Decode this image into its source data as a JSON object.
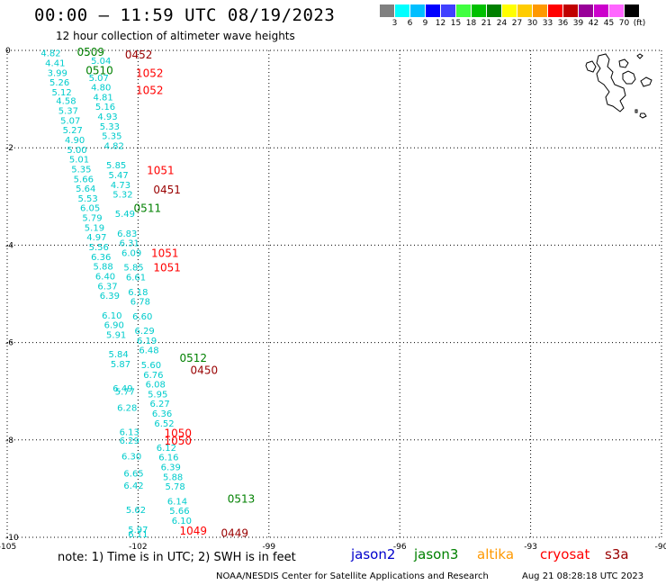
{
  "header": {
    "title": "00:00 – 11:59 UTC 08/19/2023",
    "subtitle": "12 hour collection of altimeter wave heights"
  },
  "colorbar": {
    "colors": [
      "#808080",
      "#00ffff",
      "#00bfff",
      "#0000ff",
      "#4040ff",
      "#40ff40",
      "#00c000",
      "#008000",
      "#ffff00",
      "#ffcc00",
      "#ff9900",
      "#ff0000",
      "#c00000",
      "#990099",
      "#cc00cc",
      "#ff66ff",
      "#000000"
    ],
    "labels": [
      "3",
      "6",
      "9",
      "12",
      "15",
      "18",
      "21",
      "24",
      "27",
      "30",
      "33",
      "36",
      "39",
      "42",
      "45",
      "70",
      "(ft)"
    ]
  },
  "map": {
    "lon_range": [
      -105,
      -90
    ],
    "lat_range": [
      -10,
      0
    ],
    "x_ticks": [
      "-105",
      "-102",
      "-99",
      "-96",
      "-93",
      "-90"
    ],
    "y_ticks": [
      "0",
      "-2",
      "-4",
      "-6",
      "-8",
      "-10"
    ],
    "colors": {
      "jason2": "#0000cc",
      "jason3": "#008000",
      "altika": "#ff9900",
      "cryosat": "#ff0000",
      "s3a": "#990000",
      "track": "#00cccc"
    }
  },
  "values": [
    {
      "t": "4.82",
      "lon": -104.0,
      "lat": -0.05
    },
    {
      "t": "4.41",
      "lon": -103.9,
      "lat": -0.25
    },
    {
      "t": "3.99",
      "lon": -103.85,
      "lat": -0.45
    },
    {
      "t": "5.26",
      "lon": -103.8,
      "lat": -0.65
    },
    {
      "t": "5.12",
      "lon": -103.75,
      "lat": -0.85
    },
    {
      "t": "4.58",
      "lon": -103.65,
      "lat": -1.03
    },
    {
      "t": "5.37",
      "lon": -103.6,
      "lat": -1.23
    },
    {
      "t": "5.07",
      "lon": -103.55,
      "lat": -1.43
    },
    {
      "t": "5.27",
      "lon": -103.5,
      "lat": -1.63
    },
    {
      "t": "4.90",
      "lon": -103.45,
      "lat": -1.83
    },
    {
      "t": "5.00",
      "lon": -103.4,
      "lat": -2.03
    },
    {
      "t": "5.01",
      "lon": -103.35,
      "lat": -2.23
    },
    {
      "t": "5.35",
      "lon": -103.3,
      "lat": -2.43
    },
    {
      "t": "5.66",
      "lon": -103.25,
      "lat": -2.63
    },
    {
      "t": "5.64",
      "lon": -103.2,
      "lat": -2.83
    },
    {
      "t": "5.53",
      "lon": -103.15,
      "lat": -3.03
    },
    {
      "t": "6.05",
      "lon": -103.1,
      "lat": -3.23
    },
    {
      "t": "5.79",
      "lon": -103.05,
      "lat": -3.43
    },
    {
      "t": "5.19",
      "lon": -103.0,
      "lat": -3.63
    },
    {
      "t": "4.97",
      "lon": -102.95,
      "lat": -3.83
    },
    {
      "t": "5.56",
      "lon": -102.9,
      "lat": -4.03
    },
    {
      "t": "6.36",
      "lon": -102.85,
      "lat": -4.23
    },
    {
      "t": "5.88",
      "lon": -102.8,
      "lat": -4.43
    },
    {
      "t": "6.40",
      "lon": -102.75,
      "lat": -4.63
    },
    {
      "t": "6.37",
      "lon": -102.7,
      "lat": -4.83
    },
    {
      "t": "6.39",
      "lon": -102.65,
      "lat": -5.03
    },
    {
      "t": "6.10",
      "lon": -102.6,
      "lat": -5.43
    },
    {
      "t": "6.90",
      "lon": -102.55,
      "lat": -5.63
    },
    {
      "t": "5.91",
      "lon": -102.5,
      "lat": -5.83
    },
    {
      "t": "5.84",
      "lon": -102.45,
      "lat": -6.23
    },
    {
      "t": "5.87",
      "lon": -102.4,
      "lat": -6.43
    },
    {
      "t": "6.49",
      "lon": -102.35,
      "lat": -6.93
    },
    {
      "t": "5.77",
      "lon": -102.3,
      "lat": -7.0
    },
    {
      "t": "6.28",
      "lon": -102.25,
      "lat": -7.33
    },
    {
      "t": "6.13",
      "lon": -102.2,
      "lat": -7.83
    },
    {
      "t": "6.29",
      "lon": -102.2,
      "lat": -8.0
    },
    {
      "t": "6.30",
      "lon": -102.15,
      "lat": -8.33
    },
    {
      "t": "6.65",
      "lon": -102.1,
      "lat": -8.68
    },
    {
      "t": "6.42",
      "lon": -102.1,
      "lat": -8.93
    },
    {
      "t": "5.62",
      "lon": -102.05,
      "lat": -9.43
    },
    {
      "t": "5.97",
      "lon": -102.0,
      "lat": -9.83
    },
    {
      "t": "6.11",
      "lon": -102.0,
      "lat": -9.93
    },
    {
      "t": "5.04",
      "lon": -102.85,
      "lat": -0.2
    },
    {
      "t": "5.07",
      "lon": -102.9,
      "lat": -0.55
    },
    {
      "t": "4.80",
      "lon": -102.85,
      "lat": -0.75
    },
    {
      "t": "4.81",
      "lon": -102.8,
      "lat": -0.95
    },
    {
      "t": "5.16",
      "lon": -102.75,
      "lat": -1.15
    },
    {
      "t": "4.93",
      "lon": -102.7,
      "lat": -1.35
    },
    {
      "t": "5.33",
      "lon": -102.65,
      "lat": -1.55
    },
    {
      "t": "5.35",
      "lon": -102.6,
      "lat": -1.75
    },
    {
      "t": "4.82",
      "lon": -102.55,
      "lat": -1.95
    },
    {
      "t": "5.85",
      "lon": -102.5,
      "lat": -2.35
    },
    {
      "t": "5.47",
      "lon": -102.45,
      "lat": -2.55
    },
    {
      "t": "4.73",
      "lon": -102.4,
      "lat": -2.75
    },
    {
      "t": "5.32",
      "lon": -102.35,
      "lat": -2.95
    },
    {
      "t": "5.49",
      "lon": -102.3,
      "lat": -3.35
    },
    {
      "t": "6.83",
      "lon": -102.25,
      "lat": -3.75
    },
    {
      "t": "6.31",
      "lon": -102.2,
      "lat": -3.95
    },
    {
      "t": "6.09",
      "lon": -102.15,
      "lat": -4.15
    },
    {
      "t": "5.85",
      "lon": -102.1,
      "lat": -4.45
    },
    {
      "t": "6.61",
      "lon": -102.05,
      "lat": -4.65
    },
    {
      "t": "6.18",
      "lon": -102.0,
      "lat": -4.95
    },
    {
      "t": "6.78",
      "lon": -101.95,
      "lat": -5.15
    },
    {
      "t": "6.60",
      "lon": -101.9,
      "lat": -5.45
    },
    {
      "t": "6.29",
      "lon": -101.85,
      "lat": -5.75
    },
    {
      "t": "6.19",
      "lon": -101.8,
      "lat": -5.95
    },
    {
      "t": "6.48",
      "lon": -101.75,
      "lat": -6.15
    },
    {
      "t": "5.60",
      "lon": -101.7,
      "lat": -6.45
    },
    {
      "t": "6.76",
      "lon": -101.65,
      "lat": -6.65
    },
    {
      "t": "6.08",
      "lon": -101.6,
      "lat": -6.85
    },
    {
      "t": "5.95",
      "lon": -101.55,
      "lat": -7.05
    },
    {
      "t": "6.27",
      "lon": -101.5,
      "lat": -7.25
    },
    {
      "t": "6.36",
      "lon": -101.45,
      "lat": -7.45
    },
    {
      "t": "6.52",
      "lon": -101.4,
      "lat": -7.65
    },
    {
      "t": "6.12",
      "lon": -101.35,
      "lat": -8.15
    },
    {
      "t": "6.16",
      "lon": -101.3,
      "lat": -8.35
    },
    {
      "t": "6.39",
      "lon": -101.25,
      "lat": -8.55
    },
    {
      "t": "5.88",
      "lon": -101.2,
      "lat": -8.75
    },
    {
      "t": "5.78",
      "lon": -101.15,
      "lat": -8.95
    },
    {
      "t": "6.14",
      "lon": -101.1,
      "lat": -9.25
    },
    {
      "t": "5.66",
      "lon": -101.05,
      "lat": -9.45
    },
    {
      "t": "6.10",
      "lon": -101.0,
      "lat": -9.65
    }
  ],
  "passes": [
    {
      "t": "0509",
      "lon": -103.4,
      "lat": -0.02,
      "sat": "jason3"
    },
    {
      "t": "0452",
      "lon": -102.3,
      "lat": -0.07,
      "sat": "s3a"
    },
    {
      "t": "0510",
      "lon": -103.2,
      "lat": -0.4,
      "sat": "jason3"
    },
    {
      "t": "1052",
      "lon": -102.05,
      "lat": -0.45,
      "sat": "cryosat"
    },
    {
      "t": "1052",
      "lon": -102.05,
      "lat": -0.8,
      "sat": "cryosat"
    },
    {
      "t": "1051",
      "lon": -101.8,
      "lat": -2.45,
      "sat": "cryosat"
    },
    {
      "t": "0451",
      "lon": -101.65,
      "lat": -2.85,
      "sat": "s3a"
    },
    {
      "t": "0511",
      "lon": -102.1,
      "lat": -3.23,
      "sat": "jason3"
    },
    {
      "t": "1051",
      "lon": -101.7,
      "lat": -4.15,
      "sat": "cryosat"
    },
    {
      "t": "1051",
      "lon": -101.65,
      "lat": -4.45,
      "sat": "cryosat"
    },
    {
      "t": "0512",
      "lon": -101.05,
      "lat": -6.3,
      "sat": "jason3"
    },
    {
      "t": "0450",
      "lon": -100.8,
      "lat": -6.55,
      "sat": "s3a"
    },
    {
      "t": "1050",
      "lon": -101.4,
      "lat": -7.85,
      "sat": "cryosat"
    },
    {
      "t": "1050",
      "lon": -101.4,
      "lat": -8.0,
      "sat": "cryosat"
    },
    {
      "t": "0513",
      "lon": -99.95,
      "lat": -9.2,
      "sat": "jason3"
    },
    {
      "t": "1049",
      "lon": -101.05,
      "lat": -9.85,
      "sat": "cryosat"
    },
    {
      "t": "0449",
      "lon": -100.1,
      "lat": -9.9,
      "sat": "s3a"
    }
  ],
  "footer": {
    "note": "note:  1) Time is in UTC;  2) SWH is in feet",
    "legend": [
      "jason2",
      "jason3",
      "altika",
      "cryosat",
      "s3a"
    ],
    "credit": "NOAA/NESDIS Center for Satellite Applications and Research",
    "timestamp": "Aug 21 08:28:18 UTC 2023"
  }
}
